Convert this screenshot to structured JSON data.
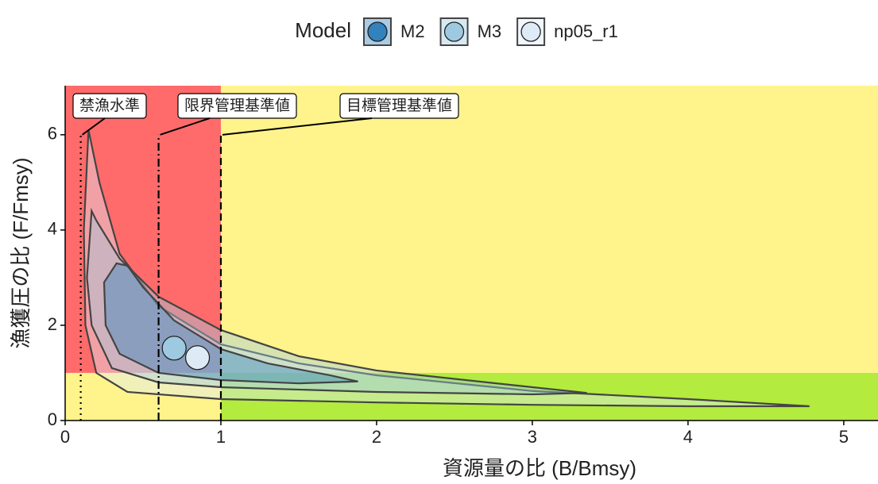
{
  "chart_data": {
    "type": "kobe",
    "xlabel": "資源量の比 (B/Bmsy)",
    "ylabel": "漁獲圧の比 (F/Fmsy)",
    "xlim": [
      0,
      5.22
    ],
    "ylim": [
      0,
      7.03
    ],
    "xticks": [
      0,
      1,
      2,
      3,
      4,
      5
    ],
    "yticks": [
      0,
      2,
      4,
      6
    ],
    "legend_title": "Model",
    "legend_position": "top",
    "zones": [
      {
        "x": [
          0,
          1
        ],
        "y": [
          1,
          7.03
        ],
        "color": "#ff6b6b"
      },
      {
        "x": [
          0,
          1
        ],
        "y": [
          0,
          1
        ],
        "color": "#fff38c"
      },
      {
        "x": [
          1,
          5.22
        ],
        "y": [
          1,
          7.03
        ],
        "color": "#fff38c"
      },
      {
        "x": [
          1,
          5.22
        ],
        "y": [
          0,
          1
        ],
        "color": "#b3eb3f"
      }
    ],
    "reference_lines": [
      {
        "x": 0.1,
        "top": 6.0,
        "label": "禁漁水準",
        "dash": "2,5"
      },
      {
        "x": 0.6,
        "top": 6.0,
        "label": "限界管理基準値",
        "dash": "10,4,2,4"
      },
      {
        "x": 1,
        "top": 6.0,
        "label": "目標管理基準値",
        "dash": "9,5"
      }
    ],
    "series": [
      {
        "name": "np05_r1",
        "color": "#deebf7",
        "region_x": [
          0.15,
          0.12,
          0.13,
          0.2,
          0.4,
          1,
          2,
          3,
          4,
          4.78,
          4,
          3,
          2,
          1.5,
          1,
          0.6,
          0.35,
          0.22
        ],
        "region_y": [
          6.1,
          4,
          2,
          1.0,
          0.6,
          0.45,
          0.38,
          0.33,
          0.3,
          0.3,
          0.45,
          0.62,
          0.95,
          1.2,
          1.6,
          2.4,
          3.5,
          5
        ],
        "point": {
          "x": 0.85,
          "y": 1.32
        }
      },
      {
        "name": "M3",
        "color": "#9ecae1",
        "region_x": [
          0.17,
          0.14,
          0.17,
          0.3,
          0.6,
          1,
          2,
          3,
          3.35,
          3,
          2,
          1.5,
          1,
          0.6,
          0.35,
          0.2
        ],
        "region_y": [
          4.4,
          3,
          2,
          1.1,
          0.8,
          0.7,
          0.6,
          0.55,
          0.58,
          0.7,
          1.05,
          1.35,
          1.9,
          2.6,
          3.4,
          4.2
        ],
        "point": {
          "x": 0.7,
          "y": 1.52
        }
      },
      {
        "name": "M2",
        "color": "#3182bd",
        "region_x": [
          0.33,
          0.25,
          0.26,
          0.35,
          0.6,
          1,
          1.5,
          1.88,
          1.7,
          1.3,
          1,
          0.7,
          0.5,
          0.4
        ],
        "region_y": [
          3.3,
          2.9,
          2,
          1.4,
          1.0,
          0.85,
          0.78,
          0.82,
          0.95,
          1.2,
          1.5,
          2.1,
          2.8,
          3.25
        ]
      }
    ]
  }
}
